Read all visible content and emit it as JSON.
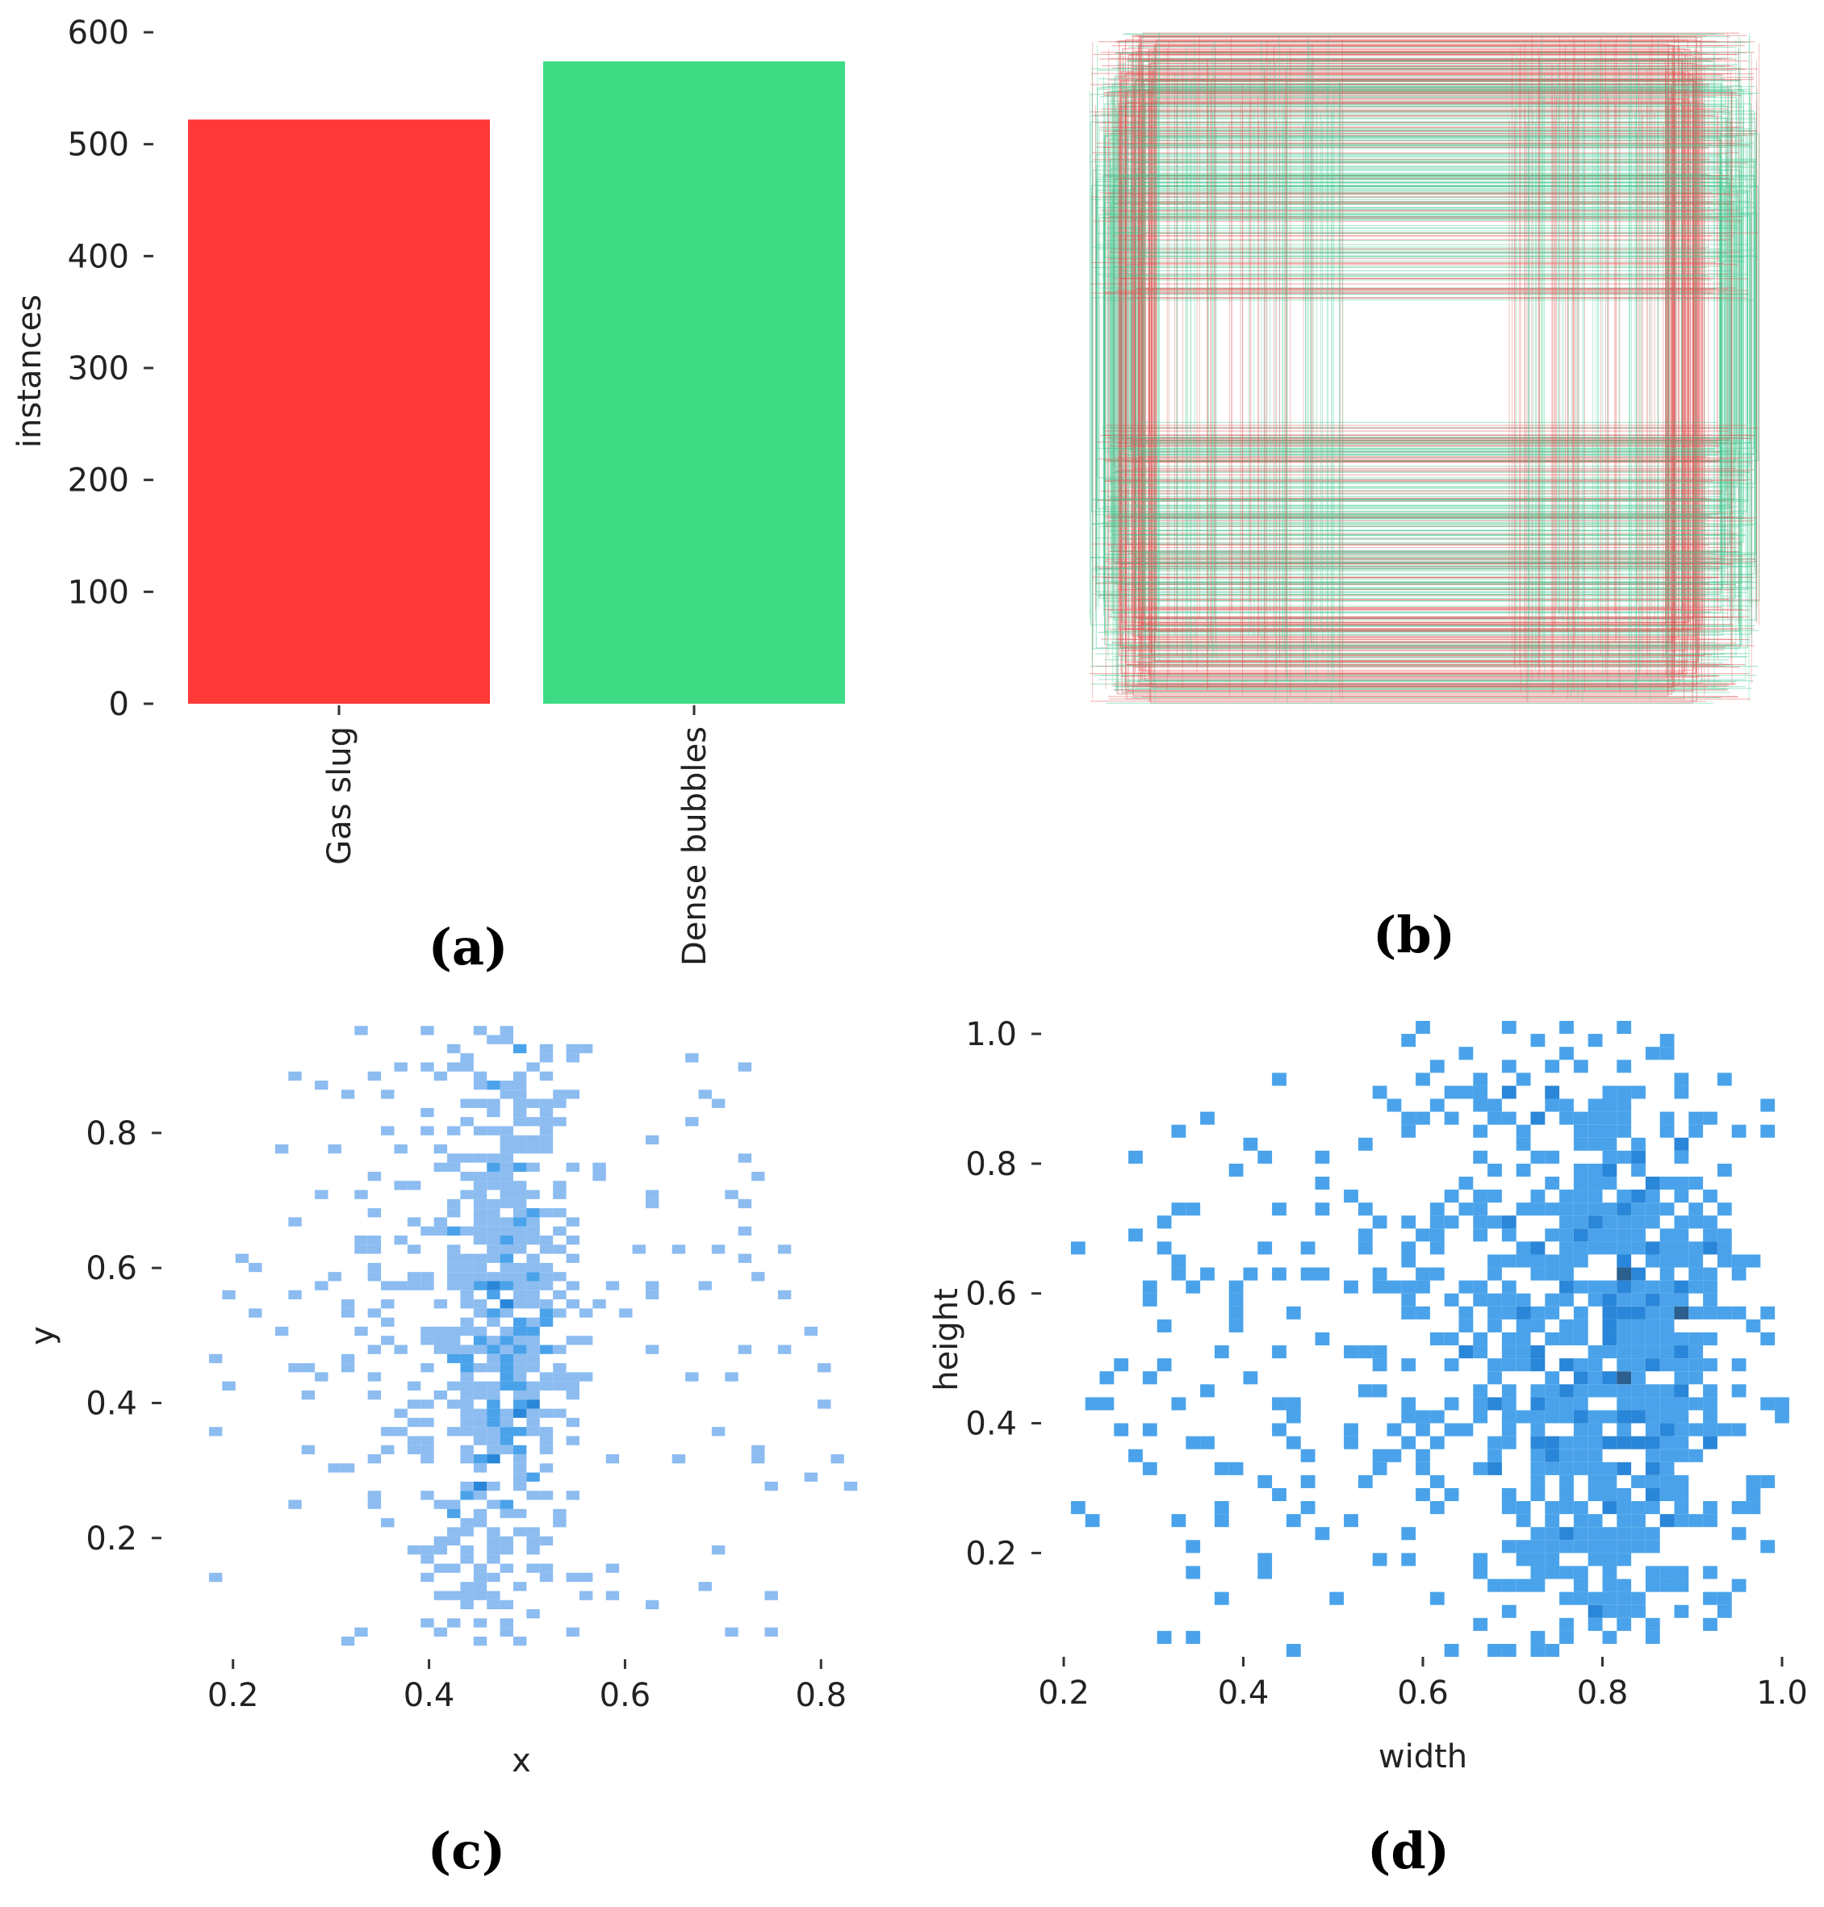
{
  "chart_data": [
    {
      "panel": "(a)",
      "type": "bar",
      "categories": [
        "Gas slug",
        "Dense bubbles"
      ],
      "values": [
        522,
        574
      ],
      "colors": [
        "#ff3838",
        "#3ddc84"
      ],
      "ylabel": "instances",
      "xlabel": "",
      "ylim": [
        0,
        600
      ],
      "yticks": [
        0,
        100,
        200,
        300,
        400,
        500,
        600
      ],
      "ytick_labels": [
        "0",
        "100",
        "200",
        "300",
        "400",
        "500",
        "600"
      ],
      "grid": false
    },
    {
      "panel": "(b)",
      "type": "box-overlay",
      "description_classes": [
        "Gas slug",
        "Dense bubbles"
      ],
      "colors": [
        "#e05050",
        "#40c890"
      ],
      "xlim": [
        0,
        1
      ],
      "ylim": [
        0,
        1
      ],
      "grid": false,
      "box_count": 120,
      "box_x_range": [
        0.0,
        1.0
      ],
      "box_y_range": [
        0.0,
        1.0
      ]
    },
    {
      "panel": "(c)",
      "type": "heatmap",
      "xlabel": "x",
      "ylabel": "y",
      "xlim": [
        0.15,
        0.85
      ],
      "ylim": [
        0.03,
        0.96
      ],
      "xticks": [
        0.2,
        0.4,
        0.6,
        0.8
      ],
      "xtick_labels": [
        "0.2",
        "0.4",
        "0.6",
        "0.8"
      ],
      "yticks": [
        0.2,
        0.4,
        0.6,
        0.8
      ],
      "ytick_labels": [
        "0.2",
        "0.4",
        "0.6",
        "0.8"
      ],
      "bin_size": [
        0.0135,
        0.0135
      ],
      "color_levels": [
        "#8cbcf0",
        "#4aa3ea",
        "#2a86d8",
        "#2c5f8e"
      ],
      "clusters": [
        {
          "x": 0.48,
          "y": 0.5,
          "sx": 0.035,
          "sy": 0.25,
          "n": 560
        },
        {
          "x": 0.4,
          "y": 0.5,
          "sx": 0.06,
          "sy": 0.22,
          "n": 130
        },
        {
          "x": 0.3,
          "y": 0.5,
          "sx": 0.1,
          "sy": 0.22,
          "n": 40
        },
        {
          "x": 0.72,
          "y": 0.55,
          "sx": 0.06,
          "sy": 0.25,
          "n": 50
        }
      ]
    },
    {
      "panel": "(d)",
      "type": "heatmap",
      "xlabel": "width",
      "ylabel": "height",
      "xlim": [
        0.2,
        1.0
      ],
      "ylim": [
        0.05,
        1.02
      ],
      "xticks": [
        0.2,
        0.4,
        0.6,
        0.8,
        1.0
      ],
      "xtick_labels": [
        "0.2",
        "0.4",
        "0.6",
        "0.8",
        "1.0"
      ],
      "yticks": [
        0.2,
        0.4,
        0.6,
        0.8,
        1.0
      ],
      "ytick_labels": [
        "0.2",
        "0.4",
        "0.6",
        "0.8",
        "1.0"
      ],
      "bin_size": [
        0.016,
        0.02
      ],
      "color_levels": [
        "#4aa3ea",
        "#2a86d8",
        "#2c5f8e"
      ],
      "clusters": [
        {
          "x": 0.82,
          "y": 0.5,
          "sx": 0.07,
          "sy": 0.26,
          "n": 650
        },
        {
          "x": 0.7,
          "y": 0.55,
          "sx": 0.09,
          "sy": 0.25,
          "n": 260
        },
        {
          "x": 0.4,
          "y": 0.45,
          "sx": 0.12,
          "sy": 0.25,
          "n": 110
        }
      ]
    }
  ]
}
